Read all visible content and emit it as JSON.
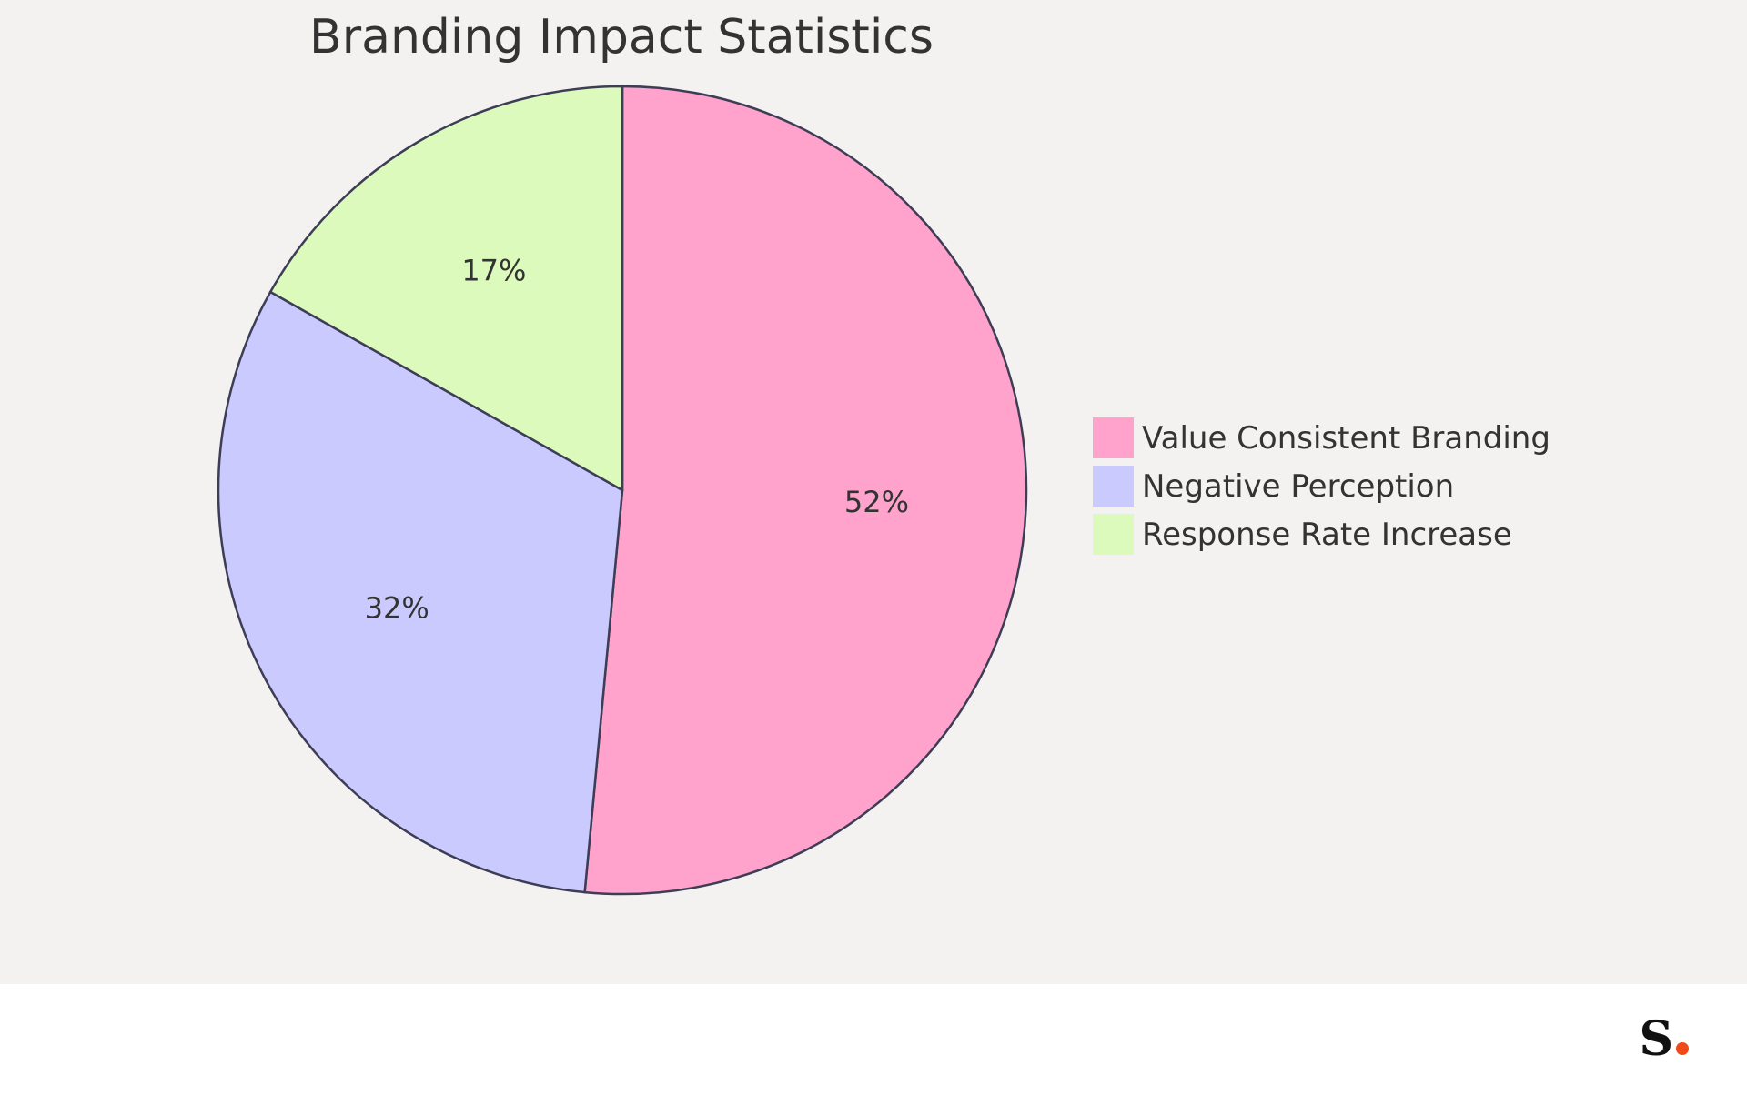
{
  "chart_data": {
    "type": "pie",
    "title": "Branding Impact Statistics",
    "slices": [
      {
        "label": "Value Consistent Branding",
        "value": 52,
        "display": "52%",
        "color": "#ffa3cc"
      },
      {
        "label": "Negative Perception",
        "value": 32,
        "display": "32%",
        "color": "#cacaff"
      },
      {
        "label": "Response Rate Increase",
        "value": 17,
        "display": "17%",
        "color": "#dcfabc"
      }
    ],
    "start_angle": "12 o'clock",
    "direction": "clockwise",
    "legend_position": "right",
    "stroke_color": "#3d3d55"
  },
  "branding": {
    "logo_text": "S",
    "logo_dot_color": "#f04a18"
  }
}
